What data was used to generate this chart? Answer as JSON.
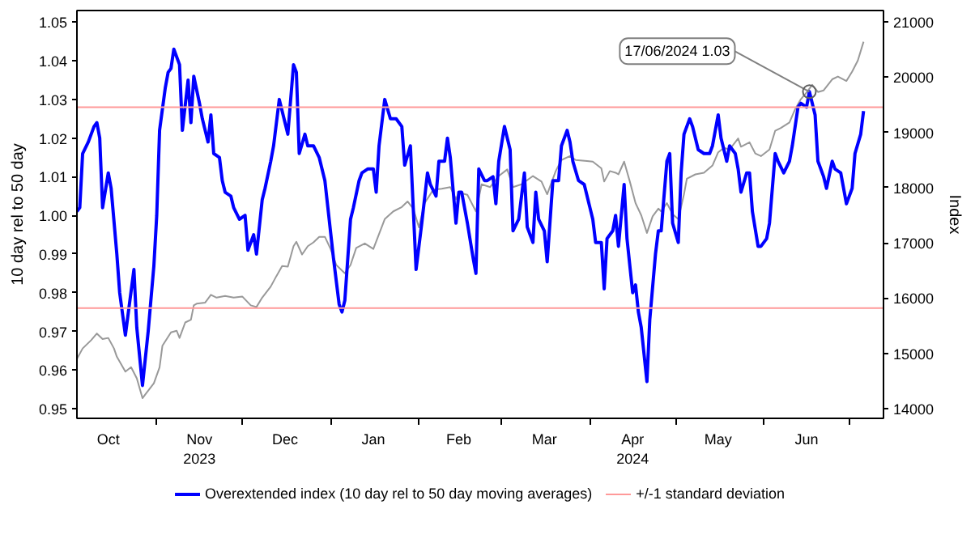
{
  "chart_data": {
    "type": "line",
    "ylabel": "10 day rel to 50 day",
    "y2label": "Index",
    "xlim": [
      "2023-10-04",
      "2024-07-13"
    ],
    "ylim": [
      0.9475,
      1.053
    ],
    "y2lim": [
      13825,
      21205
    ],
    "xticks": [
      {
        "value": "2023-10-15",
        "label": "Oct"
      },
      {
        "value": "2023-11-16",
        "label": "Nov\n2023"
      },
      {
        "value": "2023-12-16",
        "label": "Dec"
      },
      {
        "value": "2024-01-16",
        "label": "Jan"
      },
      {
        "value": "2024-02-15",
        "label": "Feb"
      },
      {
        "value": "2024-03-16",
        "label": "Mar"
      },
      {
        "value": "2024-04-16",
        "label": "Apr\n2024"
      },
      {
        "value": "2024-05-16",
        "label": "May"
      },
      {
        "value": "2024-06-16",
        "label": "Jun"
      },
      {
        "value": "2023-11-01",
        "label": null
      },
      {
        "value": "2023-12-01",
        "label": null
      },
      {
        "value": "2024-01-01",
        "label": null
      },
      {
        "value": "2024-02-01",
        "label": null
      },
      {
        "value": "2024-03-01",
        "label": null
      },
      {
        "value": "2024-04-01",
        "label": null
      },
      {
        "value": "2024-05-01",
        "label": null
      },
      {
        "value": "2024-06-01",
        "label": null
      },
      {
        "value": "2024-07-01",
        "label": null
      }
    ],
    "yticks": [
      0.95,
      0.96,
      0.97,
      0.98,
      0.99,
      {
        "value": 1,
        "label": "1.00"
      },
      1.01,
      1.02,
      1.03,
      1.04,
      1.05
    ],
    "y2ticks": [
      14000,
      15000,
      16000,
      17000,
      18000,
      19000,
      20000,
      21000
    ],
    "series": [
      {
        "color": "#999999",
        "axis": "y2",
        "x": [
          "2023-10-04",
          "2023-10-06",
          "2023-10-09",
          "2023-10-11",
          "2023-10-13",
          "2023-10-15",
          "2023-10-17",
          "2023-10-18",
          "2023-10-21",
          "2023-10-23",
          "2023-10-25",
          "2023-10-27",
          "2023-10-28",
          "2023-10-31",
          "2023-11-02",
          "2023-11-03",
          "2023-11-06",
          "2023-11-08",
          "2023-11-09",
          "2023-11-11",
          "2023-11-13",
          "2023-11-14",
          "2023-11-15",
          "2023-11-18",
          "2023-11-20",
          "2023-11-22",
          "2023-11-25",
          "2023-11-28",
          "2023-12-01",
          "2023-12-04",
          "2023-12-06",
          "2023-12-08",
          "2023-12-11",
          "2023-12-13",
          "2023-12-15",
          "2023-12-17",
          "2023-12-19",
          "2023-12-20",
          "2023-12-22",
          "2023-12-24",
          "2023-12-26",
          "2023-12-28",
          "2023-12-30",
          "2024-01-01",
          "2024-01-03",
          "2024-01-06",
          "2024-01-08",
          "2024-01-10",
          "2024-01-13",
          "2024-01-16",
          "2024-01-20",
          "2024-01-23",
          "2024-01-26",
          "2024-01-28",
          "2024-01-30",
          "2024-02-01",
          "2024-02-03",
          "2024-02-06",
          "2024-02-09",
          "2024-02-12",
          "2024-02-14",
          "2024-02-15",
          "2024-02-18",
          "2024-02-21",
          "2024-02-23",
          "2024-02-26",
          "2024-02-29",
          "2024-03-03",
          "2024-03-05",
          "2024-03-08",
          "2024-03-12",
          "2024-03-15",
          "2024-03-17",
          "2024-03-20",
          "2024-03-22",
          "2024-03-25",
          "2024-03-27",
          "2024-03-31",
          "2024-04-02",
          "2024-04-05",
          "2024-04-06",
          "2024-04-08",
          "2024-04-10",
          "2024-04-11",
          "2024-04-13",
          "2024-04-15",
          "2024-04-17",
          "2024-04-19",
          "2024-04-21",
          "2024-04-23",
          "2024-04-25",
          "2024-04-26",
          "2024-04-28",
          "2024-04-30",
          "2024-05-02",
          "2024-05-04",
          "2024-05-05",
          "2024-05-08",
          "2024-05-11",
          "2024-05-14",
          "2024-05-16",
          "2024-05-18",
          "2024-05-20",
          "2024-05-23",
          "2024-05-24",
          "2024-05-27",
          "2024-05-29",
          "2024-05-31",
          "2024-06-03",
          "2024-06-05",
          "2024-06-07",
          "2024-06-10",
          "2024-06-12",
          "2024-06-14",
          "2024-06-16",
          "2024-06-18",
          "2024-06-20",
          "2024-06-22",
          "2024-06-25",
          "2024-06-27",
          "2024-06-30",
          "2024-07-02",
          "2024-07-04",
          "2024-07-06"
        ],
        "values": [
          14900,
          15090,
          15240,
          15360,
          15260,
          15280,
          15090,
          14940,
          14670,
          14750,
          14550,
          14190,
          14260,
          14460,
          14750,
          15140,
          15380,
          15410,
          15280,
          15560,
          15610,
          15870,
          15900,
          15920,
          16060,
          16010,
          16040,
          16010,
          16030,
          15870,
          15840,
          16010,
          16210,
          16400,
          16580,
          16570,
          16940,
          17020,
          16790,
          16940,
          17010,
          17110,
          17110,
          16890,
          16600,
          16450,
          16600,
          16910,
          16990,
          16890,
          17430,
          17570,
          17650,
          17750,
          17620,
          17280,
          17720,
          17960,
          17980,
          18010,
          17790,
          17910,
          17870,
          17570,
          18060,
          18010,
          18210,
          18330,
          18010,
          18060,
          18210,
          18110,
          17880,
          18300,
          18500,
          18570,
          18500,
          18480,
          18470,
          18350,
          18110,
          18300,
          18270,
          18240,
          18470,
          18110,
          17720,
          17500,
          17180,
          17480,
          17620,
          17570,
          17720,
          17520,
          17430,
          17880,
          18160,
          18240,
          18270,
          18400,
          18640,
          18720,
          18690,
          18890,
          18740,
          18820,
          18620,
          18570,
          18690,
          19030,
          19080,
          19180,
          19420,
          19600,
          19720,
          19860,
          19730,
          19760,
          19960,
          20010,
          19930,
          20100,
          20300,
          20640
        ]
      },
      {
        "name": "Overextended index (10 day rel to 50 day moving averages)",
        "color": "#0000ff",
        "x": [
          "2023-10-04",
          "2023-10-05",
          "2023-10-06",
          "2023-10-08",
          "2023-10-10",
          "2023-10-11",
          "2023-10-12",
          "2023-10-13",
          "2023-10-15",
          "2023-10-16",
          "2023-10-18",
          "2023-10-19",
          "2023-10-21",
          "2023-10-24",
          "2023-10-25",
          "2023-10-27",
          "2023-10-29",
          "2023-10-31",
          "2023-11-01",
          "2023-11-02",
          "2023-11-04",
          "2023-11-05",
          "2023-11-06",
          "2023-11-07",
          "2023-11-09",
          "2023-11-10",
          "2023-11-12",
          "2023-11-13",
          "2023-11-14",
          "2023-11-16",
          "2023-11-17",
          "2023-11-19",
          "2023-11-20",
          "2023-11-21",
          "2023-11-23",
          "2023-11-24",
          "2023-11-25",
          "2023-11-27",
          "2023-11-28",
          "2023-11-30",
          "2023-12-02",
          "2023-12-03",
          "2023-12-05",
          "2023-12-06",
          "2023-12-08",
          "2023-12-09",
          "2023-12-11",
          "2023-12-12",
          "2023-12-14",
          "2023-12-16",
          "2023-12-17",
          "2023-12-19",
          "2023-12-20",
          "2023-12-21",
          "2023-12-23",
          "2023-12-24",
          "2023-12-26",
          "2023-12-28",
          "2023-12-30",
          "2024-01-02",
          "2024-01-04",
          "2024-01-05",
          "2024-01-06",
          "2024-01-08",
          "2024-01-09",
          "2024-01-11",
          "2024-01-12",
          "2024-01-14",
          "2024-01-16",
          "2024-01-17",
          "2024-01-18",
          "2024-01-20",
          "2024-01-22",
          "2024-01-24",
          "2024-01-26",
          "2024-01-27",
          "2024-01-29",
          "2024-01-30",
          "2024-01-31",
          "2024-02-02",
          "2024-02-04",
          "2024-02-05",
          "2024-02-07",
          "2024-02-08",
          "2024-02-10",
          "2024-02-11",
          "2024-02-12",
          "2024-02-14",
          "2024-02-15",
          "2024-02-16",
          "2024-02-18",
          "2024-02-20",
          "2024-02-21",
          "2024-02-22",
          "2024-02-24",
          "2024-02-25",
          "2024-02-27",
          "2024-02-28",
          "2024-02-29",
          "2024-03-02",
          "2024-03-04",
          "2024-03-05",
          "2024-03-07",
          "2024-03-09",
          "2024-03-10",
          "2024-03-12",
          "2024-03-13",
          "2024-03-14",
          "2024-03-16",
          "2024-03-17",
          "2024-03-19",
          "2024-03-21",
          "2024-03-22",
          "2024-03-24",
          "2024-03-25",
          "2024-03-26",
          "2024-03-28",
          "2024-03-30",
          "2024-03-31",
          "2024-04-01",
          "2024-04-02",
          "2024-04-03",
          "2024-04-05",
          "2024-04-06",
          "2024-04-07",
          "2024-04-09",
          "2024-04-10",
          "2024-04-11",
          "2024-04-13",
          "2024-04-14",
          "2024-04-16",
          "2024-04-17",
          "2024-04-18",
          "2024-04-19",
          "2024-04-21",
          "2024-04-22",
          "2024-04-24",
          "2024-04-25",
          "2024-04-26",
          "2024-04-28",
          "2024-04-29",
          "2024-04-30",
          "2024-05-02",
          "2024-05-03",
          "2024-05-04",
          "2024-05-06",
          "2024-05-07",
          "2024-05-09",
          "2024-05-11",
          "2024-05-13",
          "2024-05-14",
          "2024-05-16",
          "2024-05-17",
          "2024-05-19",
          "2024-05-20",
          "2024-05-22",
          "2024-05-23",
          "2024-05-24",
          "2024-05-26",
          "2024-05-27",
          "2024-05-28",
          "2024-05-30",
          "2024-05-31",
          "2024-06-02",
          "2024-06-03",
          "2024-06-05",
          "2024-06-06",
          "2024-06-08",
          "2024-06-10",
          "2024-06-11",
          "2024-06-13",
          "2024-06-14",
          "2024-06-16",
          "2024-06-17",
          "2024-06-19",
          "2024-06-20",
          "2024-06-22",
          "2024-06-23",
          "2024-06-25",
          "2024-06-26",
          "2024-06-28",
          "2024-06-30",
          "2024-07-02",
          "2024-07-03",
          "2024-07-05",
          "2024-07-06"
        ],
        "values": [
          1.001,
          1.002,
          1.016,
          1.019,
          1.023,
          1.024,
          1.02,
          1.002,
          1.011,
          1.007,
          0.99,
          0.98,
          0.969,
          0.986,
          0.971,
          0.956,
          0.97,
          0.987,
          1.0,
          1.022,
          1.033,
          1.037,
          1.038,
          1.043,
          1.039,
          1.022,
          1.035,
          1.024,
          1.036,
          1.029,
          1.025,
          1.019,
          1.026,
          1.016,
          1.015,
          1.009,
          1.006,
          1.005,
          1.002,
          0.999,
          1.0,
          0.991,
          0.995,
          0.99,
          1.004,
          1.007,
          1.014,
          1.018,
          1.03,
          1.024,
          1.021,
          1.039,
          1.037,
          1.016,
          1.021,
          1.018,
          1.018,
          1.015,
          1.009,
          0.989,
          0.977,
          0.975,
          0.978,
          0.999,
          1.002,
          1.009,
          1.011,
          1.012,
          1.012,
          1.006,
          1.018,
          1.03,
          1.025,
          1.025,
          1.023,
          1.013,
          1.018,
          1.002,
          0.986,
          0.998,
          1.011,
          1.008,
          1.005,
          1.014,
          1.014,
          1.02,
          1.015,
          0.998,
          1.006,
          1.006,
          0.998,
          0.989,
          0.985,
          1.012,
          1.009,
          1.009,
          1.01,
          1.003,
          1.014,
          1.023,
          1.017,
          0.996,
          0.999,
          1.011,
          0.997,
          0.993,
          1.006,
          0.999,
          0.996,
          0.988,
          1.009,
          1.009,
          1.018,
          1.022,
          1.019,
          1.014,
          1.009,
          1.008,
          1.005,
          1.002,
          0.999,
          0.993,
          0.993,
          0.981,
          0.994,
          0.996,
          1.0,
          0.992,
          1.008,
          0.994,
          0.98,
          0.982,
          0.975,
          0.971,
          0.957,
          0.973,
          0.99,
          0.996,
          0.996,
          1.014,
          1.016,
          0.998,
          0.993,
          1.011,
          1.021,
          1.025,
          1.023,
          1.017,
          1.016,
          1.016,
          1.018,
          1.026,
          1.02,
          1.014,
          1.018,
          1.016,
          1.012,
          1.006,
          1.011,
          1.011,
          1.001,
          0.992,
          0.992,
          0.994,
          0.998,
          1.016,
          1.014,
          1.011,
          1.014,
          1.018,
          1.028,
          1.029,
          1.028,
          1.032,
          1.026,
          1.014,
          1.01,
          1.007,
          1.014,
          1.012,
          1.011,
          1.003,
          1.007,
          1.016,
          1.021,
          1.027
        ]
      }
    ],
    "ref_lines": [
      {
        "axis": "y",
        "value": 1.028,
        "label": "+/-1 standard deviation",
        "color": "#ff9999"
      },
      {
        "axis": "y",
        "value": 0.976,
        "color": "#ff9999"
      }
    ],
    "annotations": [
      {
        "text": "17/06/2024 1.03",
        "x": "2024-06-17",
        "y": 1.032
      }
    ],
    "legend": "bottom"
  }
}
